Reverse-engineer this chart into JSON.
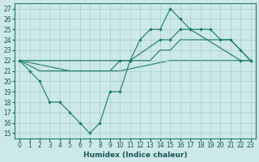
{
  "bg_color": "#cce8e8",
  "line_color": "#1a7a6e",
  "grid_color": "#aacccc",
  "xlabel": "Humidex (Indice chaleur)",
  "ylim": [
    14.5,
    27.5
  ],
  "xlim": [
    -0.5,
    23.5
  ],
  "yticks": [
    15,
    16,
    17,
    18,
    19,
    20,
    21,
    22,
    23,
    24,
    25,
    26,
    27
  ],
  "xticks": [
    0,
    1,
    2,
    3,
    4,
    5,
    6,
    7,
    8,
    9,
    10,
    11,
    12,
    13,
    14,
    15,
    16,
    17,
    18,
    19,
    20,
    21,
    22,
    23
  ],
  "curve1_x": [
    0,
    1,
    2,
    3,
    4,
    5,
    6,
    7,
    8,
    9,
    10,
    11,
    12,
    13,
    14,
    15,
    16,
    17,
    22,
    23
  ],
  "curve1_y": [
    22,
    21,
    20,
    18,
    18,
    17,
    16,
    15,
    16,
    19,
    19,
    22,
    24,
    25,
    25,
    27,
    26,
    25,
    22,
    22
  ],
  "curve2_x": [
    0,
    10,
    11,
    14,
    15,
    16,
    17,
    18,
    19,
    20,
    21,
    22,
    23
  ],
  "curve2_y": [
    22,
    22,
    22,
    24,
    24,
    25,
    25,
    25,
    25,
    24,
    24,
    23,
    22
  ],
  "curve3_x": [
    0,
    2,
    3,
    5,
    7,
    9,
    10,
    11,
    12,
    13,
    14,
    15,
    16,
    17,
    18,
    19,
    20,
    21,
    22,
    23
  ],
  "curve3_y": [
    22,
    21,
    21,
    21,
    21,
    21,
    22,
    22,
    22,
    22,
    23,
    23,
    24,
    24,
    24,
    24,
    24,
    24,
    23,
    22
  ],
  "curve4_x": [
    0,
    5,
    10,
    15,
    20,
    23
  ],
  "curve4_y": [
    22,
    21,
    21,
    22,
    22,
    22
  ]
}
